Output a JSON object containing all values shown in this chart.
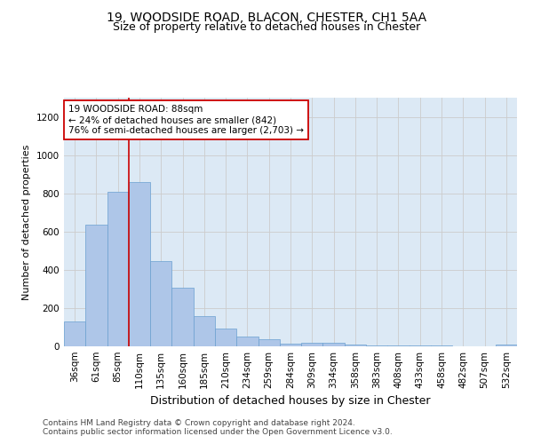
{
  "title_line1": "19, WOODSIDE ROAD, BLACON, CHESTER, CH1 5AA",
  "title_line2": "Size of property relative to detached houses in Chester",
  "xlabel": "Distribution of detached houses by size in Chester",
  "ylabel": "Number of detached properties",
  "categories": [
    "36sqm",
    "61sqm",
    "85sqm",
    "110sqm",
    "135sqm",
    "160sqm",
    "185sqm",
    "210sqm",
    "234sqm",
    "259sqm",
    "284sqm",
    "309sqm",
    "334sqm",
    "358sqm",
    "383sqm",
    "408sqm",
    "433sqm",
    "458sqm",
    "482sqm",
    "507sqm",
    "532sqm"
  ],
  "values": [
    130,
    635,
    808,
    858,
    445,
    305,
    158,
    95,
    50,
    38,
    15,
    20,
    20,
    10,
    5,
    5,
    5,
    5,
    0,
    0,
    10
  ],
  "bar_color": "#aec6e8",
  "bar_edge_color": "#6a9fd0",
  "vline_color": "#cc0000",
  "vline_x": 2.5,
  "annotation_text": "19 WOODSIDE ROAD: 88sqm\n← 24% of detached houses are smaller (842)\n76% of semi-detached houses are larger (2,703) →",
  "annotation_box_color": "#ffffff",
  "annotation_box_edge": "#cc0000",
  "ylim": [
    0,
    1300
  ],
  "yticks": [
    0,
    200,
    400,
    600,
    800,
    1000,
    1200
  ],
  "grid_color": "#cccccc",
  "bg_axes_color": "#dce9f5",
  "background_color": "#ffffff",
  "footer_line1": "Contains HM Land Registry data © Crown copyright and database right 2024.",
  "footer_line2": "Contains public sector information licensed under the Open Government Licence v3.0.",
  "title_fontsize": 10,
  "subtitle_fontsize": 9,
  "xlabel_fontsize": 9,
  "ylabel_fontsize": 8,
  "tick_fontsize": 7.5,
  "annot_fontsize": 7.5,
  "footer_fontsize": 6.5
}
